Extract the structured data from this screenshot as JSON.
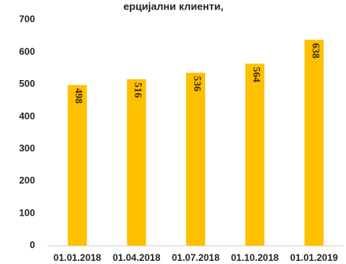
{
  "chart_data": {
    "type": "bar",
    "title_fragment": "ерцијални клиенти,",
    "categories": [
      "01.01.2018",
      "01.04.2018",
      "01.07.2018",
      "01.10.2018",
      "01.01.2019"
    ],
    "values": [
      498,
      516,
      536,
      564,
      638
    ],
    "ylim": [
      0,
      700
    ],
    "yticks": [
      0,
      100,
      200,
      300,
      400,
      500,
      600,
      700
    ],
    "bar_color": "#FFC000",
    "grid": false,
    "data_label_orientation": "vertical"
  }
}
